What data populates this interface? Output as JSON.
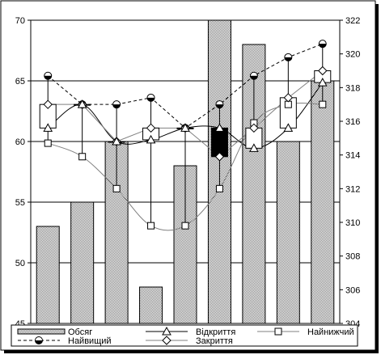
{
  "chart_data": {
    "type": "stock",
    "x_count": 9,
    "y_left": {
      "min": 45,
      "max": 70,
      "ticks": [
        45,
        50,
        55,
        60,
        65,
        70
      ]
    },
    "y_right": {
      "min": 304,
      "max": 322,
      "ticks": [
        304,
        306,
        308,
        310,
        312,
        314,
        316,
        318,
        320,
        322
      ]
    },
    "grid": true,
    "legend_position": "bottom",
    "series": [
      {
        "name": "Обсяг",
        "axis": "left",
        "values": [
          53,
          55,
          60,
          48,
          58,
          70,
          68,
          60,
          65
        ]
      },
      {
        "name": "Відкриття",
        "axis": "right",
        "values": [
          315.6,
          317.0,
          314.8,
          314.9,
          315.6,
          315.6,
          314.4,
          315.6,
          318.3
        ]
      },
      {
        "name": "Найнижчий",
        "axis": "right",
        "values": [
          314.7,
          313.9,
          312.0,
          309.8,
          309.8,
          312.0,
          315.9,
          317.0,
          317.0
        ]
      },
      {
        "name": "Найвищий",
        "axis": "right",
        "values": [
          318.7,
          317.0,
          317.0,
          317.4,
          315.6,
          317.0,
          318.7,
          319.8,
          320.6
        ]
      },
      {
        "name": "Закриття",
        "axis": "right",
        "values": [
          317.0,
          317.0,
          314.8,
          315.6,
          315.6,
          313.9,
          315.6,
          317.4,
          319.0
        ]
      }
    ],
    "colors": {
      "bar_fill": "#c0c0c0",
      "down_body": "#000000",
      "up_body": "#ffffff"
    }
  }
}
